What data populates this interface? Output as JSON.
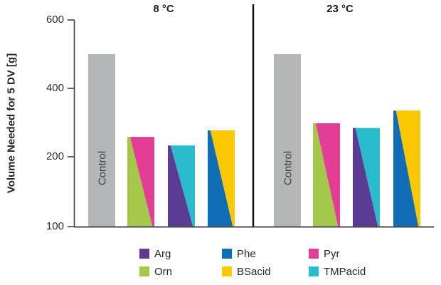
{
  "chart_data": {
    "type": "bar",
    "title": "",
    "ylabel": "Volume Needed for 5 DV [g]",
    "yticks": [
      600,
      400,
      200,
      100
    ],
    "ylim": [
      100,
      600
    ],
    "y_scale_note": "ticks 100/200/400/600 are evenly spaced (non-linear axis); bars rise from baseline value 100",
    "grid": false,
    "legend_position": "bottom",
    "colors": {
      "Control": "#b5b6b8",
      "Arg": "#5b3c94",
      "Orn": "#a5c84b",
      "Phe": "#0f6cb5",
      "BSacid": "#fdc800",
      "Pyr": "#e23e96",
      "TMPacid": "#2abccd"
    },
    "panels": [
      {
        "title": "8 °C",
        "bars": [
          {
            "label": "Control",
            "segments": [
              "Control"
            ],
            "value": 500
          },
          {
            "label": "Orn + Pyr",
            "segments": [
              "Orn",
              "Pyr"
            ],
            "value": 258
          },
          {
            "label": "Arg + TMPacid",
            "segments": [
              "Arg",
              "TMPacid"
            ],
            "value": 233
          },
          {
            "label": "Phe + BSacid",
            "segments": [
              "Phe",
              "BSacid"
            ],
            "value": 277
          }
        ]
      },
      {
        "title": "23 °C",
        "bars": [
          {
            "label": "Control",
            "segments": [
              "Control"
            ],
            "value": 500
          },
          {
            "label": "Orn + Pyr",
            "segments": [
              "Orn",
              "Pyr"
            ],
            "value": 298
          },
          {
            "label": "Arg + TMPacid",
            "segments": [
              "Arg",
              "TMPacid"
            ],
            "value": 284
          },
          {
            "label": "Phe + BSacid",
            "segments": [
              "Phe",
              "BSacid"
            ],
            "value": 335
          }
        ]
      }
    ],
    "legend": {
      "rows": [
        [
          {
            "key": "Arg",
            "label": "Arg"
          },
          {
            "key": "Phe",
            "label": "Phe"
          },
          {
            "key": "Pyr",
            "label": "Pyr"
          }
        ],
        [
          {
            "key": "Orn",
            "label": "Orn"
          },
          {
            "key": "BSacid",
            "label": "BSacid"
          },
          {
            "key": "TMPacid",
            "label": "TMPacid"
          }
        ]
      ]
    }
  }
}
